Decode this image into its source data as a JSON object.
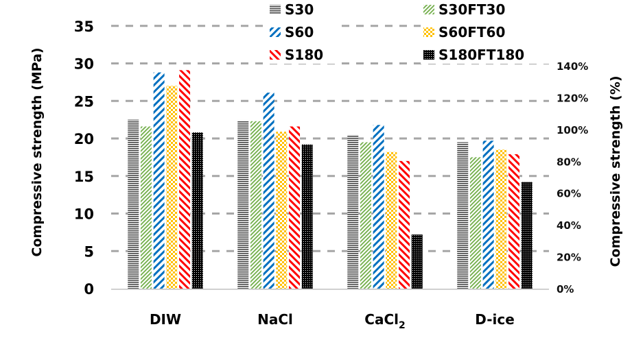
{
  "chart_data": {
    "type": "bar",
    "title": "",
    "xlabel": "",
    "ylabel": "Compressive strength (MPa)",
    "ylabel_right": "Compressive strength (%)",
    "ylim": [
      0,
      35
    ],
    "yticks": [
      "0",
      "5",
      "10",
      "15",
      "20",
      "25",
      "30",
      "35"
    ],
    "ylim_right": [
      0,
      1.5
    ],
    "yticks_right": [
      "0%",
      "20%",
      "40%",
      "60%",
      "80%",
      "100%",
      "120%",
      "140%"
    ],
    "grid": "horizontal dashed",
    "legend_position": "top",
    "categories": [
      "DIW",
      "NaCl",
      "CaCl",
      "D-ice"
    ],
    "category_subscripts": [
      "",
      "",
      "2",
      ""
    ],
    "series": [
      {
        "name": "S30",
        "color": "#555555",
        "pattern": "horizontal-lines",
        "values": [
          22.5,
          22.4,
          20.5,
          19.5
        ]
      },
      {
        "name": "S30FT30",
        "color": "#70ad47",
        "pattern": "diagonal-fine",
        "values": [
          21.6,
          22.3,
          19.5,
          17.5
        ]
      },
      {
        "name": "S60",
        "color": "#0070c0",
        "pattern": "wide-upward-diagonal",
        "values": [
          28.8,
          26.1,
          21.8,
          19.7
        ]
      },
      {
        "name": "S60FT60",
        "color": "#ffc000",
        "pattern": "checker",
        "values": [
          27.0,
          20.9,
          18.2,
          18.5
        ]
      },
      {
        "name": "S180",
        "color": "#ff0000",
        "pattern": "wide-downward-diagonal",
        "values": [
          29.1,
          21.6,
          17.0,
          17.9
        ]
      },
      {
        "name": "S180FT180",
        "color": "#000000",
        "pattern": "dotted-dense",
        "values": [
          20.8,
          19.2,
          7.2,
          14.2
        ]
      }
    ]
  }
}
